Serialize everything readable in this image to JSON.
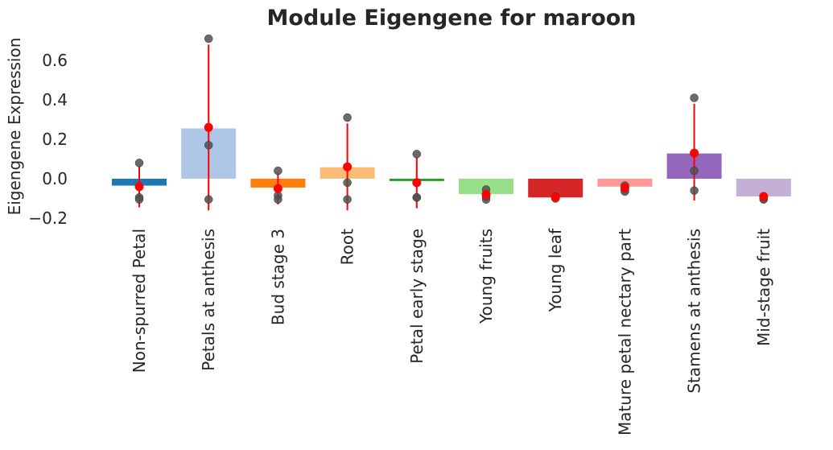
{
  "chart_data": {
    "type": "bar",
    "title": "Module Eigengene for maroon",
    "xlabel": "",
    "ylabel": "Eigengene Expression",
    "ylim": [
      -0.2,
      0.75
    ],
    "yticks": [
      -0.2,
      0.0,
      0.2,
      0.4,
      0.6
    ],
    "ytick_labels": [
      "−0.2",
      "0.0",
      "0.2",
      "0.4",
      "0.6"
    ],
    "grid": false,
    "categories": [
      "Non-spurred Petal",
      "Petals at anthesis",
      "Bud stage 3",
      "Root",
      "Petal early stage",
      "Young fruits",
      "Young leaf",
      "Mature petal nectary part",
      "Stamens at anthesis",
      "Mid-stage fruit"
    ],
    "values": [
      -0.035,
      0.255,
      -0.045,
      0.058,
      -0.012,
      -0.078,
      -0.095,
      -0.04,
      0.128,
      -0.09
    ],
    "colors": [
      "#1f77b4",
      "#aec7e8",
      "#ff7f0e",
      "#ffbb78",
      "#2ca02c",
      "#98df8a",
      "#d62728",
      "#ff9896",
      "#9467bd",
      "#c5b0d5"
    ],
    "means": [
      -0.04,
      0.26,
      -0.05,
      0.06,
      -0.02,
      -0.08,
      -0.095,
      -0.045,
      0.13,
      -0.09
    ],
    "errors": [
      [
        -0.145,
        0.065
      ],
      [
        -0.16,
        0.68
      ],
      [
        -0.13,
        0.03
      ],
      [
        -0.16,
        0.28
      ],
      [
        -0.15,
        0.11
      ],
      [
        -0.1,
        -0.065
      ],
      [
        -0.105,
        -0.088
      ],
      [
        -0.065,
        -0.03
      ],
      [
        -0.11,
        0.38
      ],
      [
        -0.105,
        -0.08
      ]
    ],
    "points": [
      [
        0.08,
        -0.095,
        -0.105
      ],
      [
        0.71,
        0.17,
        -0.105
      ],
      [
        0.04,
        -0.085,
        -0.105
      ],
      [
        0.31,
        -0.02,
        -0.105
      ],
      [
        0.125,
        -0.095,
        -0.095
      ],
      [
        -0.055,
        -0.105,
        -0.09
      ],
      [
        -0.09,
        -0.1,
        -0.095
      ],
      [
        -0.035,
        -0.055,
        -0.065
      ],
      [
        0.41,
        0.04,
        -0.06
      ],
      [
        -0.09,
        -0.1,
        -0.105
      ]
    ],
    "mean_color": "#ff0000",
    "point_color": "#505050"
  }
}
